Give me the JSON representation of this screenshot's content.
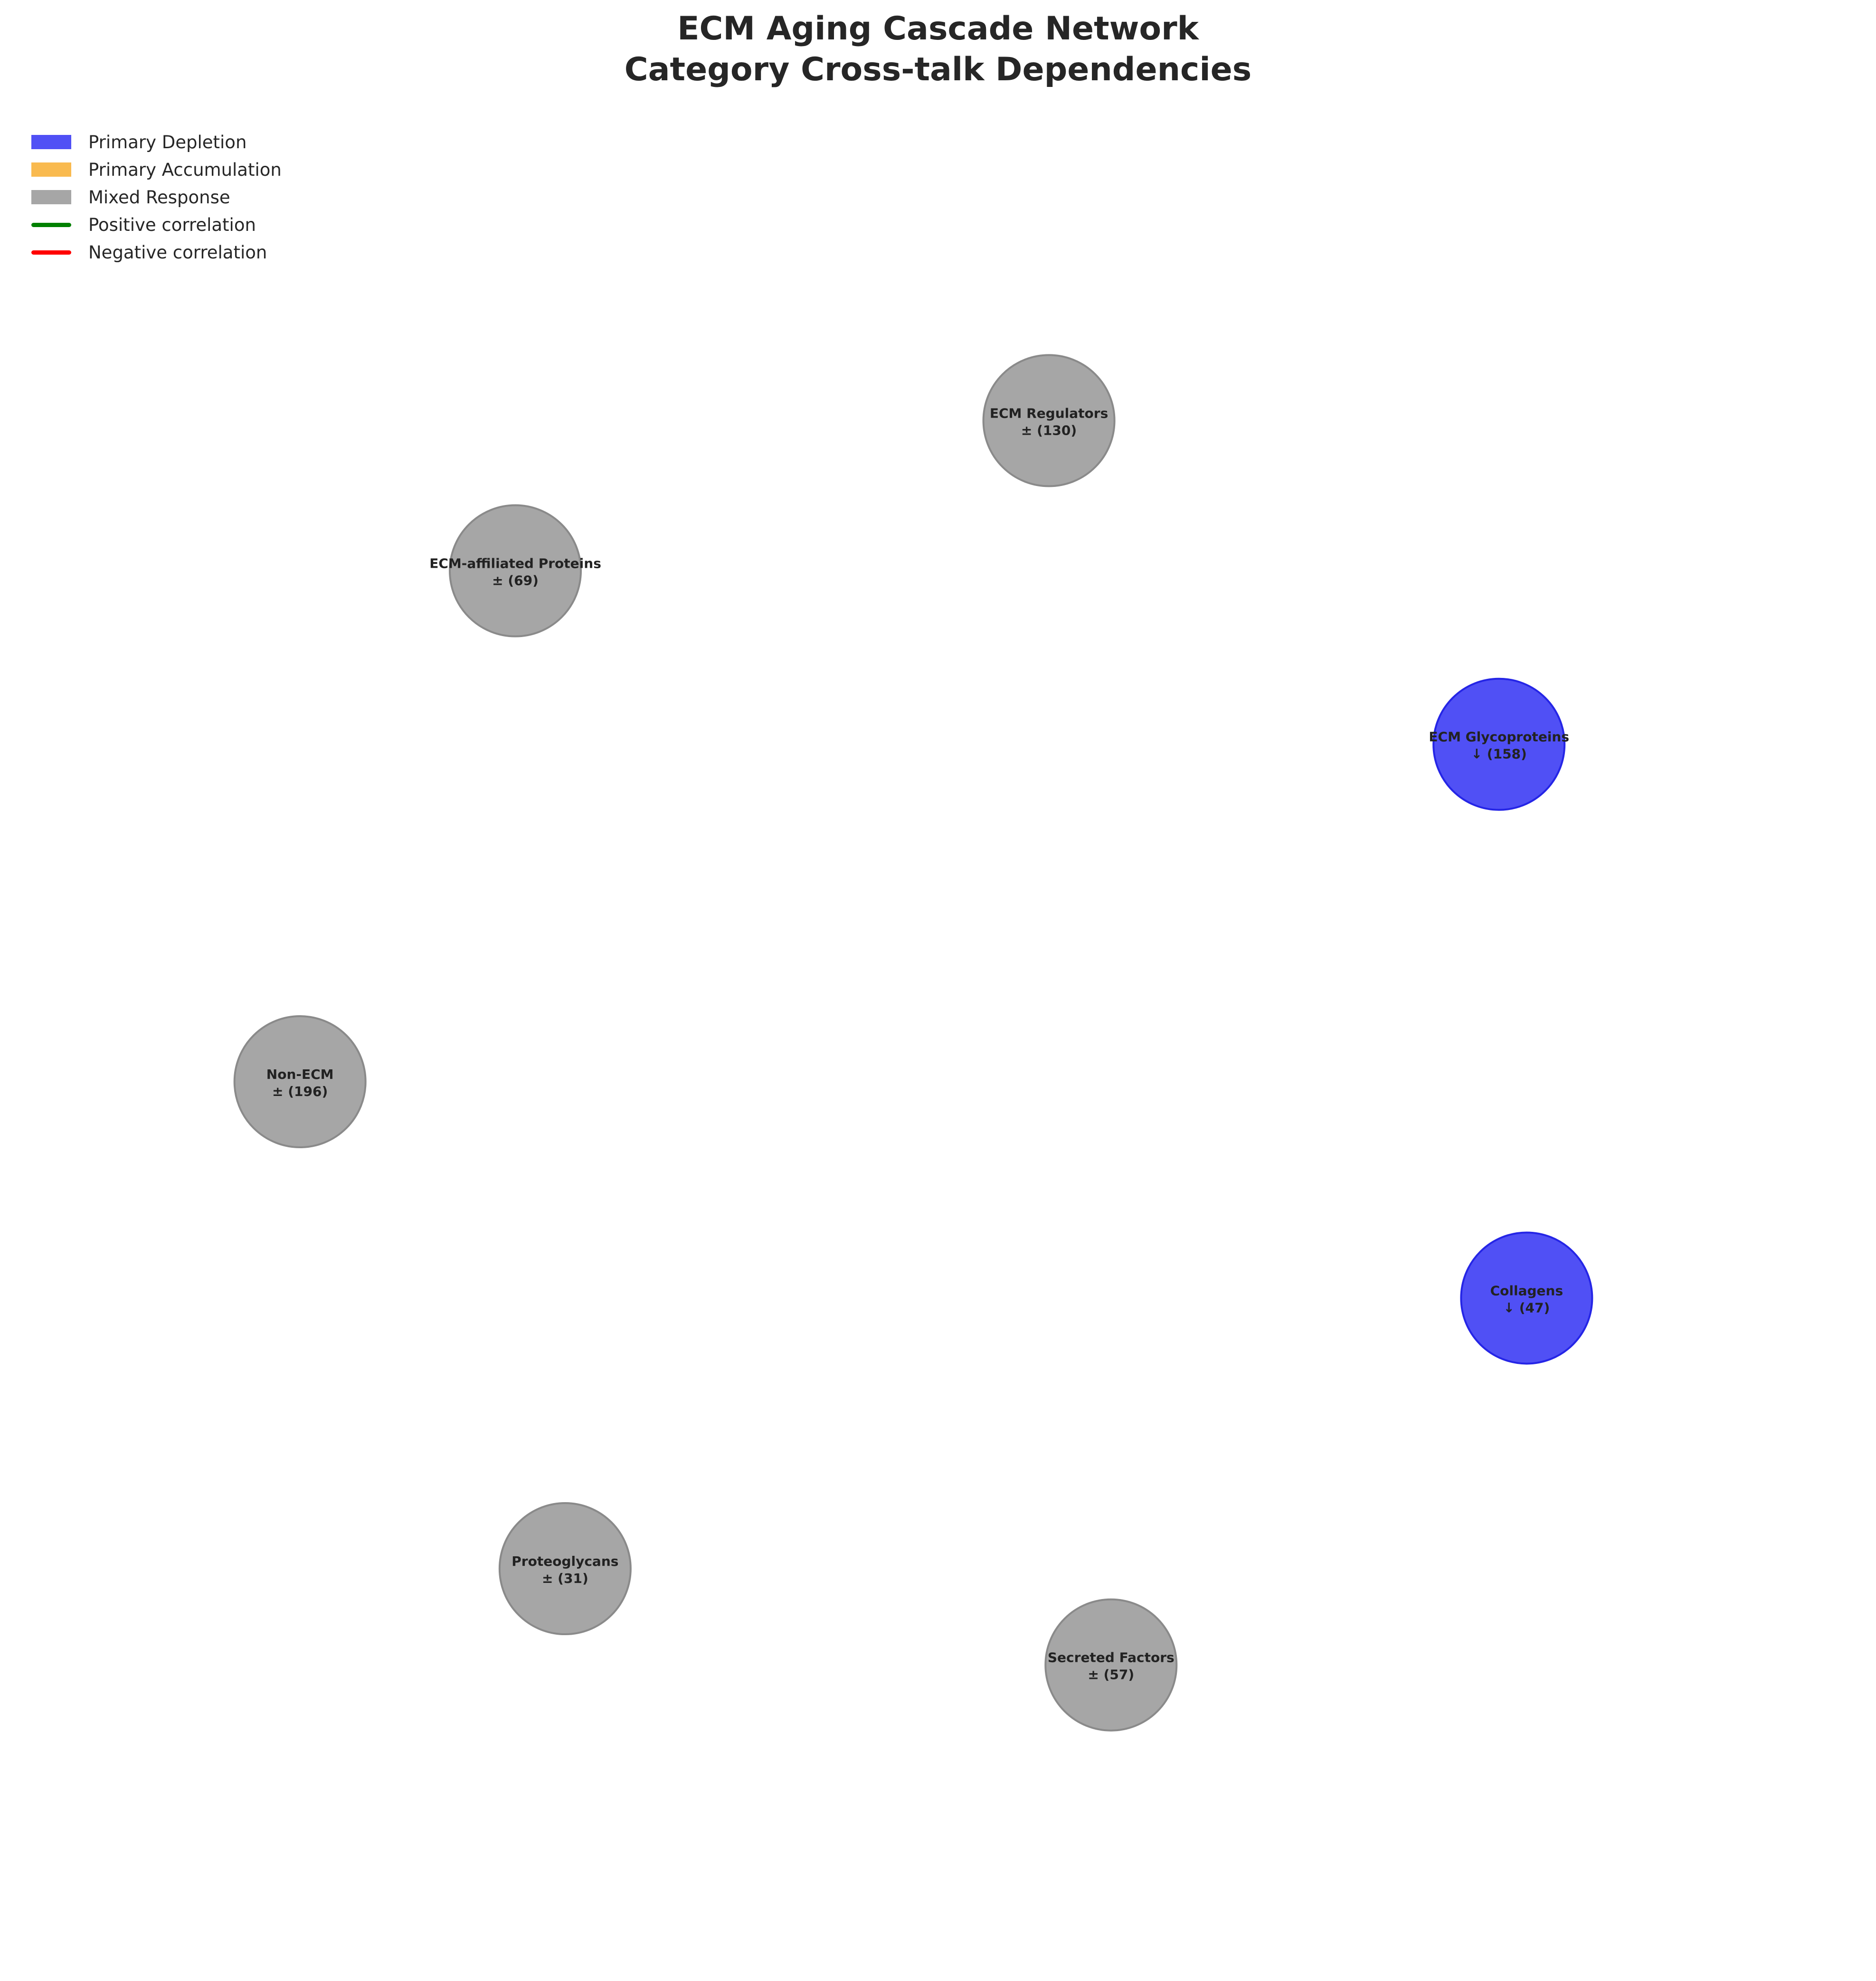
{
  "title": {
    "line1": "ECM Aging Cascade Network",
    "line2": "Category Cross-talk Dependencies"
  },
  "legend": {
    "items": [
      {
        "kind": "patch",
        "label": "Primary Depletion",
        "color": "#5050F5"
      },
      {
        "kind": "patch",
        "label": "Primary Accumulation",
        "color": "#F9BA4F"
      },
      {
        "kind": "patch",
        "label": "Mixed Response",
        "color": "#A6A6A6"
      },
      {
        "kind": "line",
        "label": "Positive correlation",
        "color": "#008000"
      },
      {
        "kind": "line",
        "label": "Negative correlation",
        "color": "#FF0000"
      }
    ]
  },
  "colors": {
    "depletion_fill": "#5050F5",
    "depletion_edge": "#2525E6",
    "mixed_fill": "#A6A6A6",
    "mixed_edge": "#8A8A8A"
  },
  "nodes": [
    {
      "id": "ecm-regulators",
      "name": "ECM Regulators",
      "symbol": "±",
      "count": 130,
      "response": "mixed"
    },
    {
      "id": "ecm-glycoproteins",
      "name": "ECM Glycoproteins",
      "symbol": "↓",
      "count": 158,
      "response": "depletion"
    },
    {
      "id": "collagens",
      "name": "Collagens",
      "symbol": "↓",
      "count": 47,
      "response": "depletion"
    },
    {
      "id": "secreted-factors",
      "name": "Secreted Factors",
      "symbol": "±",
      "count": 57,
      "response": "mixed"
    },
    {
      "id": "proteoglycans",
      "name": "Proteoglycans",
      "symbol": "±",
      "count": 31,
      "response": "mixed"
    },
    {
      "id": "non-ecm",
      "name": "Non-ECM",
      "symbol": "±",
      "count": 196,
      "response": "mixed"
    },
    {
      "id": "ecm-affiliated-proteins",
      "name": "ECM-affiliated Proteins",
      "symbol": "±",
      "count": 69,
      "response": "mixed"
    }
  ]
}
